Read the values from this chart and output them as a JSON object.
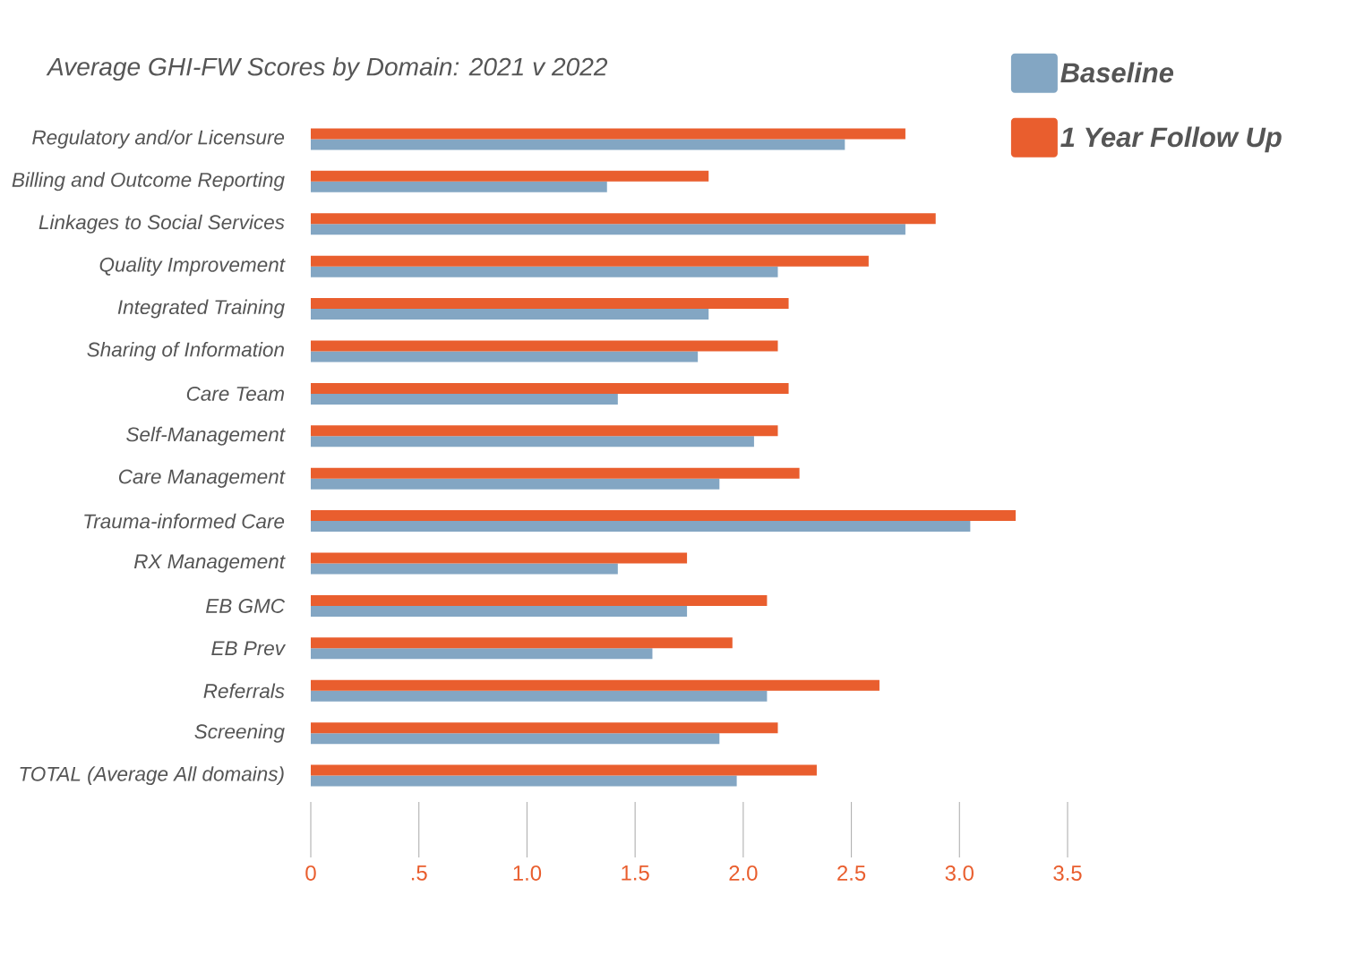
{
  "chart_data": {
    "type": "bar",
    "orientation": "horizontal",
    "title": "Average GHI-FW Scores by Domain: 2021 v 2022",
    "categories": [
      "Regulatory and/or Licensure",
      "Billing and Outcome Reporting",
      "Linkages to Social Services",
      "Quality Improvement",
      "Integrated Training",
      "Sharing of Information",
      "Care Team",
      "Self-Management",
      "Care Management",
      "Trauma-informed Care",
      "RX Management",
      "EB GMC",
      "EB Prev",
      "Referrals",
      "Screening",
      "TOTAL (Average All domains)"
    ],
    "series": [
      {
        "name": "Baseline",
        "color": "#83a6c3",
        "values": [
          2.47,
          1.37,
          2.75,
          2.16,
          1.84,
          1.79,
          1.42,
          2.05,
          1.89,
          3.05,
          1.42,
          1.74,
          1.58,
          2.11,
          1.89,
          1.97
        ]
      },
      {
        "name": "1 Year Follow Up",
        "color": "#e95e2e",
        "values": [
          2.75,
          1.84,
          2.89,
          2.58,
          2.21,
          2.16,
          2.21,
          2.16,
          2.26,
          3.26,
          1.74,
          2.11,
          1.95,
          2.63,
          2.16,
          2.34
        ]
      }
    ],
    "xlim": [
      0,
      3.5
    ],
    "xticks": [
      0,
      {
        "value": 0.5,
        "label": ".5"
      },
      {
        "value": 1,
        "label": "1.0"
      },
      {
        "value": 1.5,
        "label": "1.5"
      },
      {
        "value": 2,
        "label": "2.0"
      },
      {
        "value": 2.5,
        "label": "2.5"
      },
      {
        "value": 3,
        "label": "3.0"
      },
      {
        "value": 3.5,
        "label": "3.5"
      }
    ],
    "legend": "top right"
  }
}
